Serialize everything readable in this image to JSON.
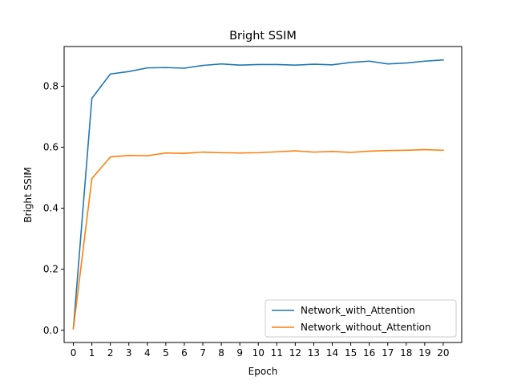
{
  "chart_data": {
    "type": "line",
    "title": "Bright SSIM",
    "xlabel": "Epoch",
    "ylabel": "Bright SSIM",
    "x": [
      0,
      1,
      2,
      3,
      4,
      5,
      6,
      7,
      8,
      9,
      10,
      11,
      12,
      13,
      14,
      15,
      16,
      17,
      18,
      19,
      20
    ],
    "xlim": [
      -0.5,
      21
    ],
    "ylim": [
      -0.04,
      0.93
    ],
    "xticks": [
      "0",
      "1",
      "2",
      "3",
      "4",
      "5",
      "6",
      "7",
      "8",
      "9",
      "10",
      "11",
      "12",
      "13",
      "14",
      "15",
      "16",
      "17",
      "18",
      "19",
      "20"
    ],
    "yticks": [
      "0.0",
      "0.2",
      "0.4",
      "0.6",
      "0.8"
    ],
    "grid": false,
    "legend_position": "lower-right",
    "series": [
      {
        "name": "Network_with_Attention",
        "color": "#1f77b4",
        "values": [
          0.005,
          0.76,
          0.84,
          0.848,
          0.86,
          0.861,
          0.859,
          0.868,
          0.873,
          0.869,
          0.871,
          0.871,
          0.869,
          0.872,
          0.87,
          0.878,
          0.882,
          0.873,
          0.876,
          0.882,
          0.886
        ]
      },
      {
        "name": "Network_without_Attention",
        "color": "#ff7f0e",
        "values": [
          0.005,
          0.497,
          0.568,
          0.573,
          0.572,
          0.581,
          0.58,
          0.584,
          0.582,
          0.581,
          0.582,
          0.585,
          0.588,
          0.584,
          0.586,
          0.583,
          0.587,
          0.589,
          0.59,
          0.592,
          0.59
        ]
      }
    ]
  }
}
